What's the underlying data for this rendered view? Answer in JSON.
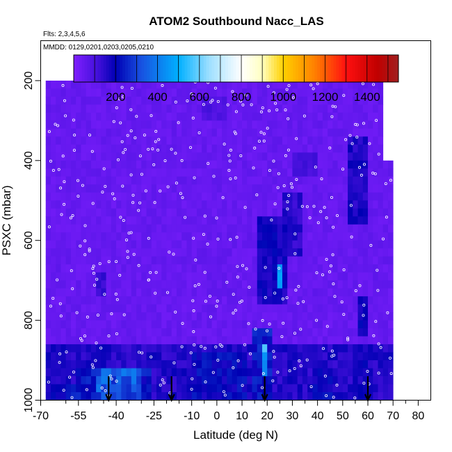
{
  "chart_data": {
    "type": "heatmap",
    "title": "ATOM2 Southbound Nacc_LAS",
    "flights_note": "Flts: 2,3,4,5,6",
    "dates_note": "MMDD: 0129,0201,0203,0205,0210",
    "xlabel": "Latitude (deg N)",
    "ylabel": "PSXC (mbar)",
    "xlim": [
      -70,
      85
    ],
    "ylim": [
      1000,
      100
    ],
    "x_ticks": [
      -70,
      -55,
      -40,
      -25,
      -10,
      0,
      10,
      20,
      30,
      40,
      50,
      60,
      70,
      80
    ],
    "x_tick_labels": [
      "-70",
      "-55",
      "-40",
      "-25",
      "-10",
      "0",
      "10",
      "20",
      "30",
      "40",
      "50",
      "60",
      "70",
      "80"
    ],
    "x_minor_ticks": [
      -60,
      -50,
      -45,
      -35,
      -30,
      -20,
      -15,
      -5,
      5,
      15,
      25,
      35,
      45,
      55,
      65,
      75
    ],
    "y_ticks": [
      200,
      400,
      600,
      800,
      1000
    ],
    "y_tick_labels": [
      "200",
      "400",
      "600",
      "800",
      "1000"
    ],
    "colorbar": {
      "min": 0,
      "max": 1550,
      "ticks": [
        200,
        400,
        600,
        800,
        1000,
        1200,
        1400
      ],
      "tick_labels": [
        "200",
        "400",
        "600",
        "800",
        "1000",
        "1200",
        "1400"
      ],
      "stops": [
        {
          "v": 0,
          "color": "#7f1fff"
        },
        {
          "v": 120,
          "color": "#3f0fd8"
        },
        {
          "v": 200,
          "color": "#0000b4"
        },
        {
          "v": 320,
          "color": "#1850e0"
        },
        {
          "v": 500,
          "color": "#00b0ff"
        },
        {
          "v": 650,
          "color": "#a0e0ff"
        },
        {
          "v": 800,
          "color": "#ffffff"
        },
        {
          "v": 900,
          "color": "#ffffc0"
        },
        {
          "v": 1000,
          "color": "#ffd000"
        },
        {
          "v": 1150,
          "color": "#ff8000"
        },
        {
          "v": 1300,
          "color": "#ff1010"
        },
        {
          "v": 1450,
          "color": "#c00000"
        },
        {
          "v": 1550,
          "color": "#a02020"
        }
      ]
    },
    "grid_x_step": 2,
    "grid_p_step": 20,
    "coverage": [
      {
        "lat": [
          -67,
          -63
        ],
        "p": [
          210,
          1000
        ]
      },
      {
        "lat": [
          -63,
          -45
        ],
        "p": [
          210,
          1000
        ]
      },
      {
        "lat": [
          -45,
          57
        ],
        "p": [
          180,
          1000
        ]
      },
      {
        "lat": [
          57,
          67
        ],
        "p": [
          200,
          1000
        ]
      },
      {
        "lat": [
          67,
          70
        ],
        "p": [
          400,
          1000
        ]
      },
      {
        "lat": [
          70,
          71
        ],
        "p": [
          800,
          1000
        ]
      }
    ],
    "background_value": 30,
    "features": [
      {
        "lat": [
          -67,
          71
        ],
        "p": [
          870,
          1000
        ],
        "value": 160
      },
      {
        "lat": [
          -55,
          -25
        ],
        "p": [
          920,
          1000
        ],
        "value": 230
      },
      {
        "lat": [
          -47,
          -30
        ],
        "p": [
          930,
          990
        ],
        "value": 340
      },
      {
        "lat": [
          -10,
          12
        ],
        "p": [
          880,
          1000
        ],
        "value": 210
      },
      {
        "lat": [
          14,
          22
        ],
        "p": [
          820,
          1000
        ],
        "value": 230
      },
      {
        "lat": [
          18,
          21
        ],
        "p": [
          860,
          930
        ],
        "value": 520
      },
      {
        "lat": [
          16,
          28
        ],
        "p": [
          540,
          760
        ],
        "value": 180
      },
      {
        "lat": [
          24,
          27
        ],
        "p": [
          660,
          720
        ],
        "value": 420
      },
      {
        "lat": [
          26,
          34
        ],
        "p": [
          480,
          640
        ],
        "value": 150
      },
      {
        "lat": [
          53,
          60
        ],
        "p": [
          350,
          560
        ],
        "value": 170
      },
      {
        "lat": [
          56,
          61
        ],
        "p": [
          750,
          840
        ],
        "value": 200
      },
      {
        "lat": [
          54,
          60
        ],
        "p": [
          880,
          1000
        ],
        "value": 180
      },
      {
        "lat": [
          -48,
          -43
        ],
        "p": [
          680,
          740
        ],
        "value": 150
      },
      {
        "lat": [
          -65,
          -55
        ],
        "p": [
          960,
          1000
        ],
        "value": 220
      },
      {
        "lat": [
          38,
          47
        ],
        "p": [
          920,
          1000
        ],
        "value": 200
      },
      {
        "lat": [
          30,
          40
        ],
        "p": [
          380,
          440
        ],
        "value": 120
      },
      {
        "lat": [
          -5,
          5
        ],
        "p": [
          240,
          300
        ],
        "value": 100
      }
    ],
    "flight_arrows_lat": [
      -43,
      -18,
      19,
      60
    ]
  }
}
